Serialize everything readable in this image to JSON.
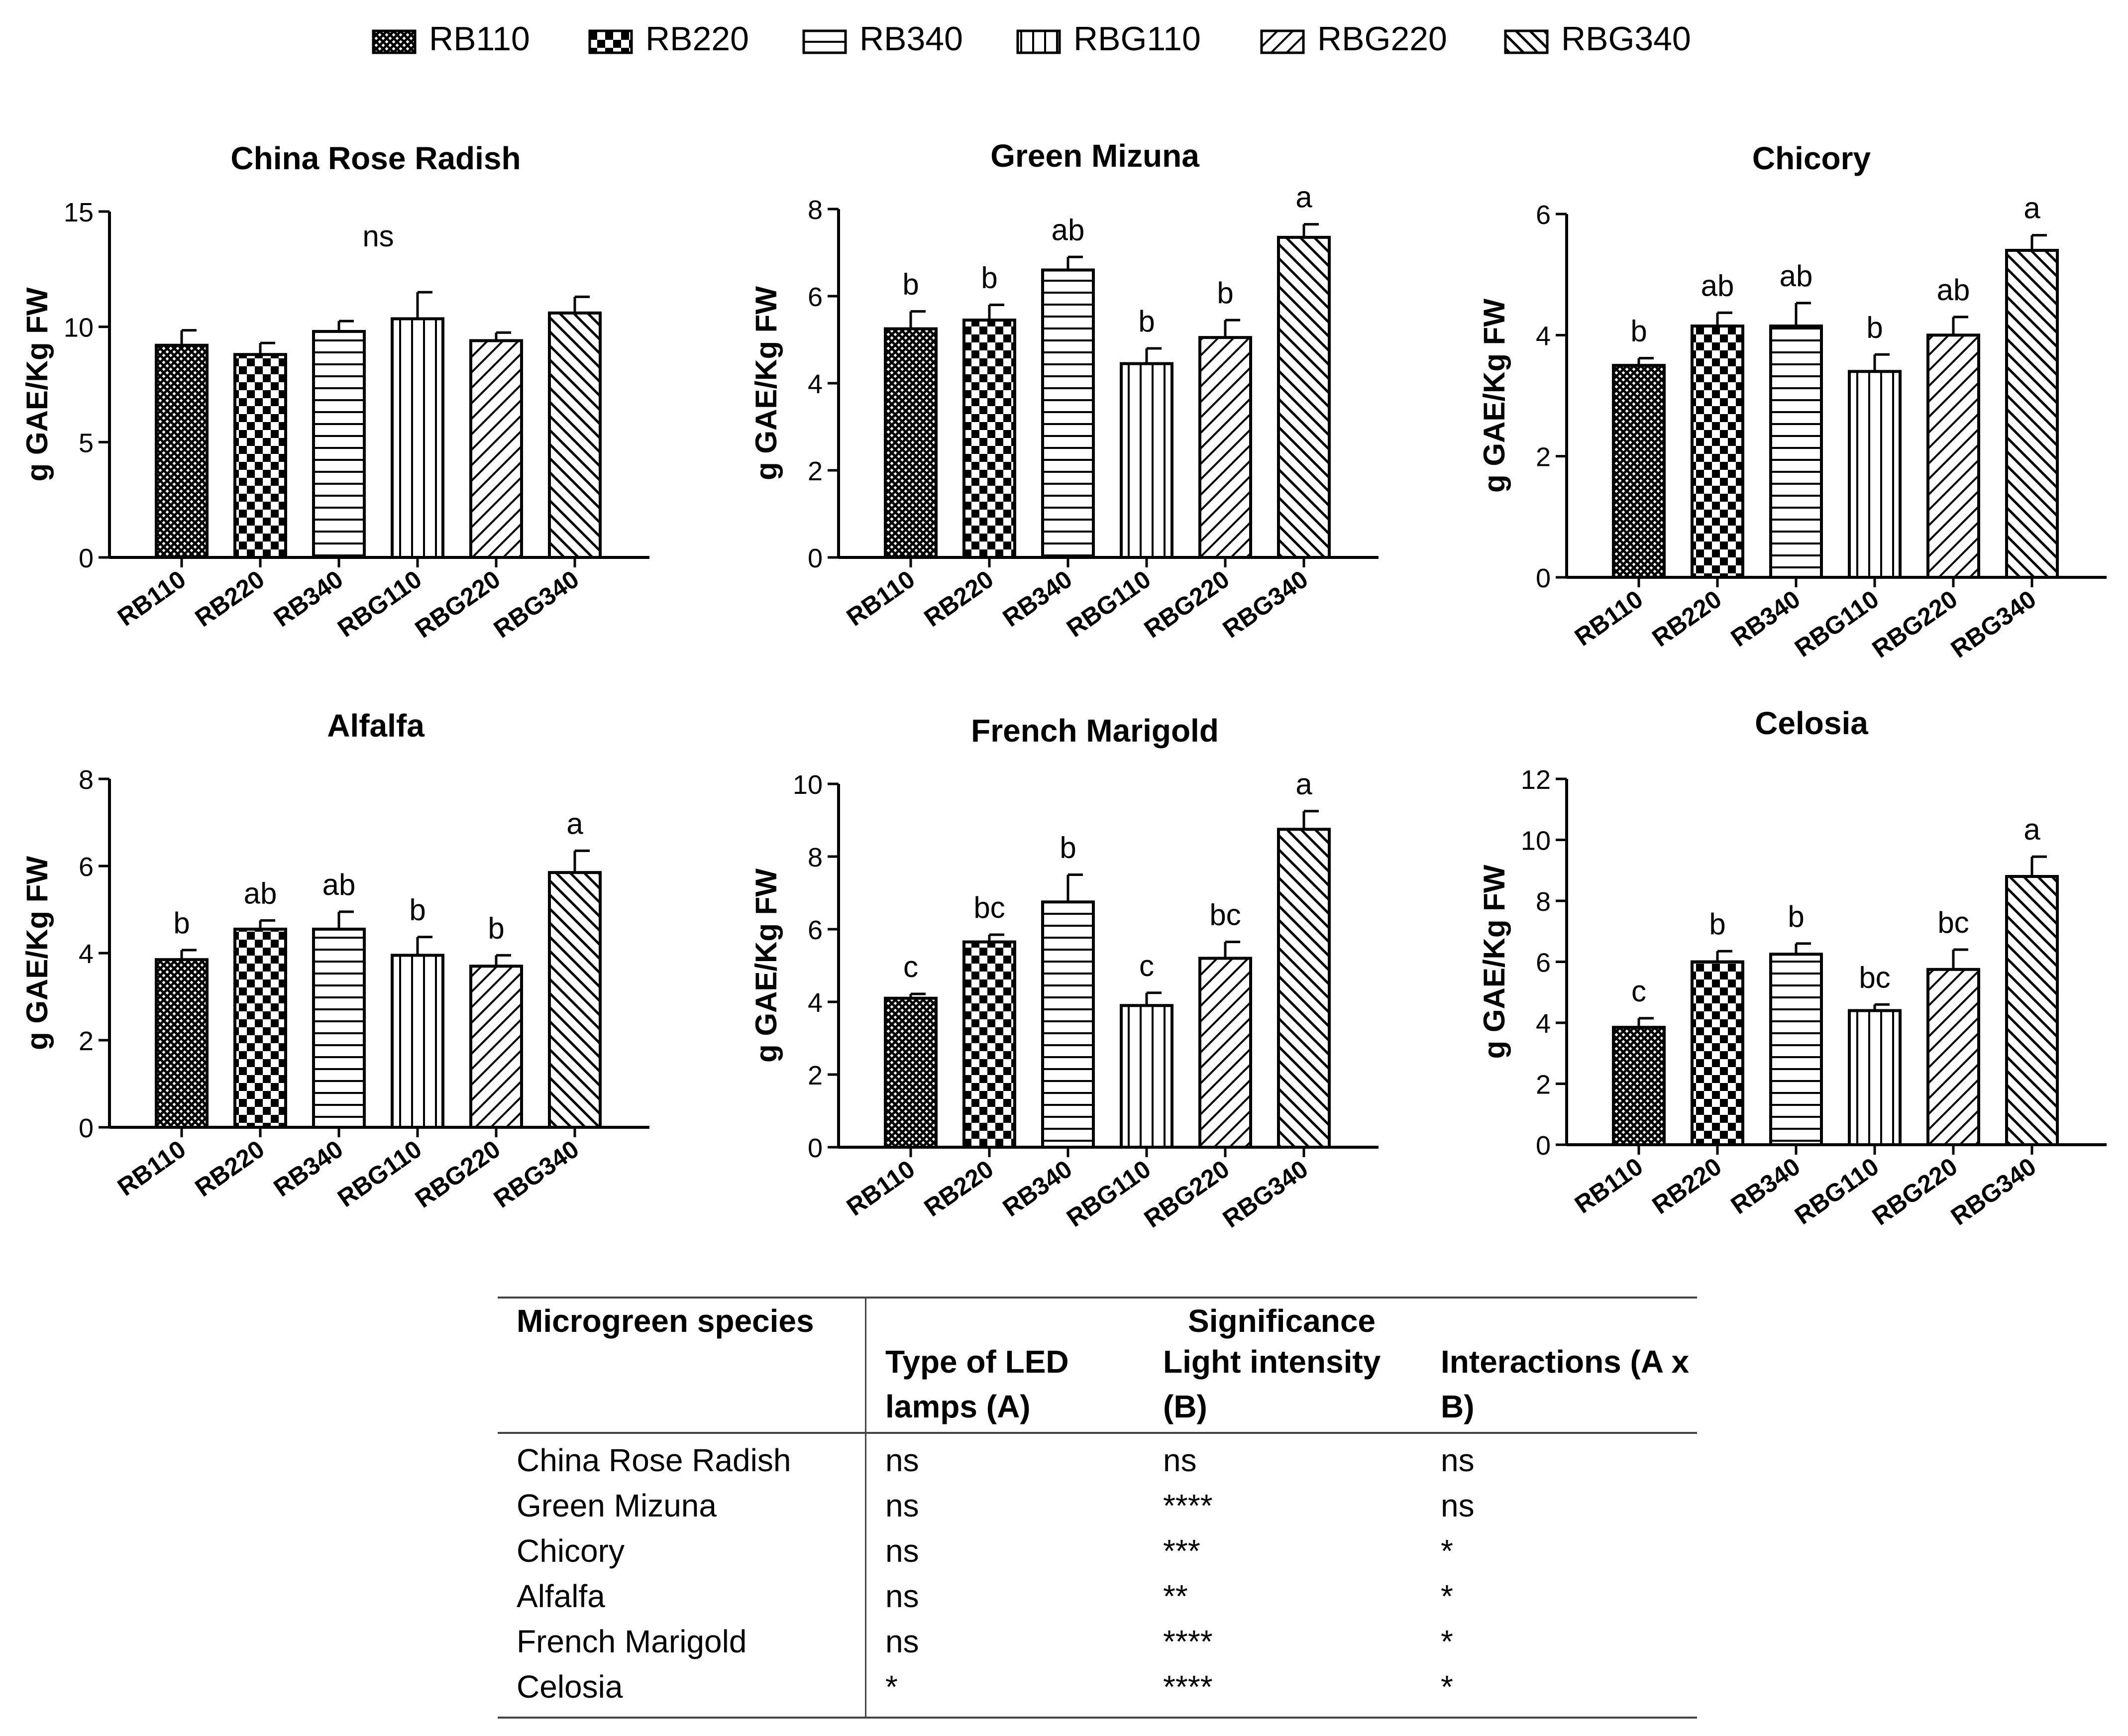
{
  "legend": [
    {
      "label": "RB110",
      "pattern": "dense"
    },
    {
      "label": "RB220",
      "pattern": "checker"
    },
    {
      "label": "RB340",
      "pattern": "hlines"
    },
    {
      "label": "RBG110",
      "pattern": "vlines"
    },
    {
      "label": "RBG220",
      "pattern": "diagfwd"
    },
    {
      "label": "RBG340",
      "pattern": "diagback"
    }
  ],
  "colors": {
    "ink": "#000000",
    "bar_fill": "#ffffff",
    "rule": "#444444"
  },
  "chart_data": [
    {
      "type": "bar",
      "title": "China Rose Radish",
      "ylabel": "g GAE/Kg FW",
      "xlabel": "",
      "categories": [
        "RB110",
        "RB220",
        "RB340",
        "RBG110",
        "RBG220",
        "RBG340"
      ],
      "values": [
        9.2,
        8.8,
        9.8,
        10.35,
        9.4,
        10.6
      ],
      "errors": [
        0.65,
        0.5,
        0.45,
        1.15,
        0.35,
        0.7
      ],
      "letters": [
        "",
        "",
        "",
        "",
        "",
        ""
      ],
      "annotation": "ns",
      "ylim": [
        0,
        15
      ],
      "yticks": [
        0,
        5,
        10,
        15
      ]
    },
    {
      "type": "bar",
      "title": "Green Mizuna",
      "ylabel": "g GAE/Kg FW",
      "xlabel": "",
      "categories": [
        "RB110",
        "RB220",
        "RB340",
        "RBG110",
        "RBG220",
        "RBG340"
      ],
      "values": [
        5.25,
        5.45,
        6.6,
        4.45,
        5.05,
        7.35
      ],
      "errors": [
        0.4,
        0.35,
        0.3,
        0.35,
        0.4,
        0.3
      ],
      "letters": [
        "b",
        "b",
        "ab",
        "b",
        "b",
        "a"
      ],
      "annotation": "",
      "ylim": [
        0,
        8
      ],
      "yticks": [
        0,
        2,
        4,
        6,
        8
      ]
    },
    {
      "type": "bar",
      "title": "Chicory",
      "ylabel": "g GAE/Kg FW",
      "xlabel": "",
      "categories": [
        "RB110",
        "RB220",
        "RB340",
        "RBG110",
        "RBG220",
        "RBG340"
      ],
      "values": [
        3.5,
        4.15,
        4.15,
        3.4,
        4.0,
        5.4
      ],
      "errors": [
        0.12,
        0.22,
        0.38,
        0.28,
        0.3,
        0.25
      ],
      "letters": [
        "b",
        "ab",
        "ab",
        "b",
        "ab",
        "a"
      ],
      "annotation": "",
      "ylim": [
        0,
        6
      ],
      "yticks": [
        0,
        2,
        4,
        6
      ]
    },
    {
      "type": "bar",
      "title": "Alfalfa",
      "ylabel": "g GAE/Kg FW",
      "xlabel": "",
      "categories": [
        "RB110",
        "RB220",
        "RB340",
        "RBG110",
        "RBG220",
        "RBG340"
      ],
      "values": [
        3.85,
        4.55,
        4.55,
        3.95,
        3.7,
        5.85
      ],
      "errors": [
        0.22,
        0.2,
        0.4,
        0.42,
        0.25,
        0.5
      ],
      "letters": [
        "b",
        "ab",
        "ab",
        "b",
        "b",
        "a"
      ],
      "annotation": "",
      "ylim": [
        0,
        8
      ],
      "yticks": [
        0,
        2,
        4,
        6,
        8
      ]
    },
    {
      "type": "bar",
      "title": "French Marigold",
      "ylabel": "g GAE/Kg FW",
      "xlabel": "",
      "categories": [
        "RB110",
        "RB220",
        "RB340",
        "RBG110",
        "RBG220",
        "RBG340"
      ],
      "values": [
        4.1,
        5.65,
        6.75,
        3.9,
        5.2,
        8.75
      ],
      "errors": [
        0.12,
        0.2,
        0.75,
        0.35,
        0.45,
        0.5
      ],
      "letters": [
        "c",
        "bc",
        "b",
        "c",
        "bc",
        "a"
      ],
      "annotation": "",
      "ylim": [
        0,
        10
      ],
      "yticks": [
        0,
        2,
        4,
        6,
        8,
        10
      ]
    },
    {
      "type": "bar",
      "title": "Celosia",
      "ylabel": "g GAE/Kg FW",
      "xlabel": "",
      "categories": [
        "RB110",
        "RB220",
        "RB340",
        "RBG110",
        "RBG220",
        "RBG340"
      ],
      "values": [
        3.85,
        6.0,
        6.25,
        4.4,
        5.75,
        8.8
      ],
      "errors": [
        0.3,
        0.35,
        0.35,
        0.2,
        0.65,
        0.65
      ],
      "letters": [
        "c",
        "b",
        "b",
        "bc",
        "bc",
        "a"
      ],
      "annotation": "",
      "ylim": [
        0,
        12
      ],
      "yticks": [
        0,
        2,
        4,
        6,
        8,
        10,
        12
      ]
    }
  ],
  "table": {
    "col_species": "Microgreen species",
    "col_significance": "Significance",
    "sub_headers": [
      "Type of LED lamps (A)",
      "Light intensity (B)",
      "Interactions (A x B)"
    ],
    "rows": [
      {
        "species": "China Rose Radish",
        "a": "ns",
        "b": "ns",
        "axb": "ns"
      },
      {
        "species": "Green Mizuna",
        "a": "ns",
        "b": "****",
        "axb": "ns"
      },
      {
        "species": "Chicory",
        "a": "ns",
        "b": "***",
        "axb": "*"
      },
      {
        "species": "Alfalfa",
        "a": "ns",
        "b": "**",
        "axb": "*"
      },
      {
        "species": "French Marigold",
        "a": "ns",
        "b": "****",
        "axb": "*"
      },
      {
        "species": "Celosia",
        "a": "*",
        "b": "****",
        "axb": "*"
      }
    ]
  }
}
